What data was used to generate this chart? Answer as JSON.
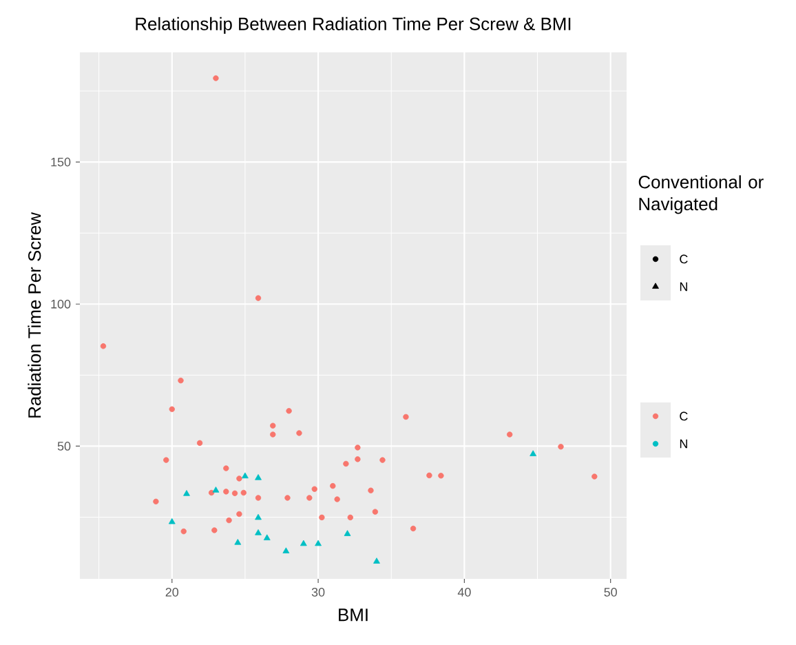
{
  "chart_data": {
    "type": "scatter",
    "title": "Relationship Between Radiation Time Per Screw & BMI",
    "xlabel": "BMI",
    "ylabel": "Radiation Time Per Screw",
    "legend_title": "Conventional or Navigated",
    "xlim": [
      13.7,
      51.1
    ],
    "ylim": [
      3.3,
      188.6
    ],
    "xticks": [
      20,
      30,
      40,
      50
    ],
    "yticks": [
      50,
      100,
      150
    ],
    "grid": true,
    "legend": "right",
    "series": [
      {
        "name": "C",
        "color": "#f8766d",
        "marker": "circle",
        "x": [
          23.0,
          25.9,
          15.3,
          20.6,
          20.0,
          21.9,
          28.0,
          26.9,
          26.9,
          28.7,
          19.6,
          23.7,
          24.6,
          18.9,
          22.7,
          23.7,
          24.3,
          24.9,
          25.9,
          27.9,
          29.4,
          29.75,
          31.0,
          31.3,
          24.6,
          23.9,
          20.8,
          22.9,
          30.25,
          32.2,
          31.9,
          32.7,
          32.7,
          34.4,
          36.0,
          37.6,
          38.4,
          33.6,
          33.9,
          36.5,
          43.1,
          46.6,
          48.9
        ],
        "values": [
          179.5,
          102.1,
          85.2,
          73.1,
          63.0,
          51.1,
          62.4,
          57.2,
          54.1,
          54.6,
          45.1,
          42.2,
          38.6,
          30.5,
          33.6,
          34.0,
          33.4,
          33.6,
          31.8,
          31.8,
          31.8,
          34.9,
          36.0,
          31.3,
          26.1,
          23.9,
          20.0,
          20.4,
          24.9,
          24.9,
          43.8,
          45.4,
          49.5,
          45.1,
          60.3,
          39.7,
          39.6,
          34.4,
          26.9,
          21.0,
          54.1,
          49.8,
          39.3
        ]
      },
      {
        "name": "N",
        "color": "#00bfc4",
        "marker": "triangle",
        "x": [
          25.0,
          25.9,
          21.0,
          23.0,
          20.0,
          25.9,
          25.9,
          26.5,
          24.5,
          27.8,
          29.0,
          30.0,
          32.0,
          34.0,
          44.7
        ],
        "values": [
          39.4,
          38.8,
          33.2,
          34.4,
          23.3,
          24.8,
          19.4,
          17.6,
          16.0,
          13.0,
          15.6,
          15.6,
          19.1,
          9.4,
          47.2
        ]
      }
    ]
  }
}
